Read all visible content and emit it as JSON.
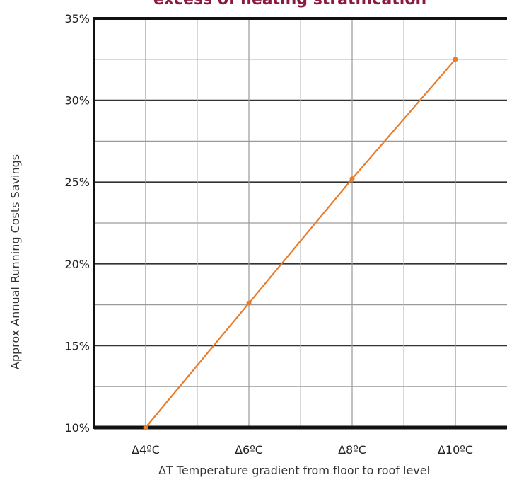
{
  "chart_data": {
    "type": "line",
    "title": "excess of heating stratification",
    "xlabel": "ΔT Temperature gradient from floor to roof level",
    "ylabel": "Approx Annual Running Costs Savings",
    "categories": [
      "Δ4ºC",
      "Δ6ºC",
      "Δ8ºC",
      "Δ10ºC"
    ],
    "x": [
      4,
      6,
      8,
      10
    ],
    "series": [
      {
        "values": [
          10,
          17.6,
          25.2,
          32.5
        ]
      }
    ],
    "ylim": [
      10,
      35
    ],
    "yticks": [
      "10%",
      "15%",
      "20%",
      "25%",
      "30%",
      "35%"
    ],
    "grid": true
  },
  "colors": {
    "title": "#8b1a3d",
    "line": "#e87c2a",
    "grid_major": "#333333",
    "grid_minor": "#9a9a9a",
    "frame": "#111111"
  }
}
